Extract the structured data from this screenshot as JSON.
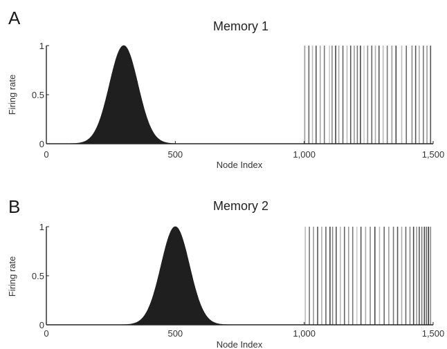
{
  "chart_data": [
    {
      "panel": "A",
      "type": "area",
      "title": "Memory 1",
      "xlabel": "Node Index",
      "ylabel": "Firing rate",
      "xlim": [
        0,
        1500
      ],
      "ylim": [
        0,
        1
      ],
      "xticks": [
        "0",
        "500",
        "1,000",
        "1,500"
      ],
      "yticks": [
        "0",
        "0.5",
        "1"
      ],
      "grid": false,
      "bump": {
        "center": 300,
        "sigma": 55,
        "peak": 1,
        "color": "#1f1f1f"
      },
      "spikes": [
        {
          "x": 1002,
          "shade": "#999999"
        },
        {
          "x": 1018,
          "shade": "#666666"
        },
        {
          "x": 1032,
          "shade": "#bbbbbb"
        },
        {
          "x": 1046,
          "shade": "#555555"
        },
        {
          "x": 1062,
          "shade": "#aaaaaa"
        },
        {
          "x": 1078,
          "shade": "#777777"
        },
        {
          "x": 1098,
          "shade": "#cccccc"
        },
        {
          "x": 1108,
          "shade": "#888888"
        },
        {
          "x": 1122,
          "shade": "#444444"
        },
        {
          "x": 1134,
          "shade": "#aaaaaa"
        },
        {
          "x": 1150,
          "shade": "#666666"
        },
        {
          "x": 1166,
          "shade": "#bbbbbb"
        },
        {
          "x": 1180,
          "shade": "#555555"
        },
        {
          "x": 1194,
          "shade": "#999999"
        },
        {
          "x": 1206,
          "shade": "#777777"
        },
        {
          "x": 1218,
          "shade": "#444444"
        },
        {
          "x": 1232,
          "shade": "#cccccc"
        },
        {
          "x": 1246,
          "shade": "#888888"
        },
        {
          "x": 1262,
          "shade": "#666666"
        },
        {
          "x": 1276,
          "shade": "#aaaaaa"
        },
        {
          "x": 1290,
          "shade": "#555555"
        },
        {
          "x": 1306,
          "shade": "#bbbbbb"
        },
        {
          "x": 1322,
          "shade": "#777777"
        },
        {
          "x": 1340,
          "shade": "#999999"
        },
        {
          "x": 1356,
          "shade": "#444444"
        },
        {
          "x": 1378,
          "shade": "#bbbbbb"
        },
        {
          "x": 1396,
          "shade": "#666666"
        },
        {
          "x": 1418,
          "shade": "#888888"
        },
        {
          "x": 1432,
          "shade": "#555555"
        },
        {
          "x": 1446,
          "shade": "#aaaaaa"
        },
        {
          "x": 1462,
          "shade": "#777777"
        },
        {
          "x": 1476,
          "shade": "#999999"
        },
        {
          "x": 1490,
          "shade": "#555555"
        }
      ]
    },
    {
      "panel": "B",
      "type": "area",
      "title": "Memory 2",
      "xlabel": "Node Index",
      "ylabel": "Firing rate",
      "xlim": [
        0,
        1500
      ],
      "ylim": [
        0,
        1
      ],
      "xticks": [
        "0",
        "500",
        "1,000",
        "1,500"
      ],
      "yticks": [
        "0",
        "0.5",
        "1"
      ],
      "grid": false,
      "bump": {
        "center": 500,
        "sigma": 55,
        "peak": 1,
        "color": "#1f1f1f"
      },
      "spikes": [
        {
          "x": 1004,
          "shade": "#bbbbbb"
        },
        {
          "x": 1020,
          "shade": "#777777"
        },
        {
          "x": 1036,
          "shade": "#999999"
        },
        {
          "x": 1052,
          "shade": "#555555"
        },
        {
          "x": 1068,
          "shade": "#aaaaaa"
        },
        {
          "x": 1084,
          "shade": "#666666"
        },
        {
          "x": 1100,
          "shade": "#444444"
        },
        {
          "x": 1110,
          "shade": "#888888"
        },
        {
          "x": 1124,
          "shade": "#555555"
        },
        {
          "x": 1140,
          "shade": "#bbbbbb"
        },
        {
          "x": 1156,
          "shade": "#666666"
        },
        {
          "x": 1172,
          "shade": "#999999"
        },
        {
          "x": 1188,
          "shade": "#777777"
        },
        {
          "x": 1204,
          "shade": "#cccccc"
        },
        {
          "x": 1220,
          "shade": "#555555"
        },
        {
          "x": 1238,
          "shade": "#aaaaaa"
        },
        {
          "x": 1256,
          "shade": "#888888"
        },
        {
          "x": 1274,
          "shade": "#444444"
        },
        {
          "x": 1292,
          "shade": "#bbbbbb"
        },
        {
          "x": 1310,
          "shade": "#666666"
        },
        {
          "x": 1328,
          "shade": "#999999"
        },
        {
          "x": 1346,
          "shade": "#777777"
        },
        {
          "x": 1362,
          "shade": "#555555"
        },
        {
          "x": 1378,
          "shade": "#aaaaaa"
        },
        {
          "x": 1394,
          "shade": "#666666"
        },
        {
          "x": 1410,
          "shade": "#888888"
        },
        {
          "x": 1424,
          "shade": "#444444"
        },
        {
          "x": 1436,
          "shade": "#999999"
        },
        {
          "x": 1446,
          "shade": "#555555"
        },
        {
          "x": 1456,
          "shade": "#777777"
        },
        {
          "x": 1466,
          "shade": "#444444"
        },
        {
          "x": 1474,
          "shade": "#666666"
        },
        {
          "x": 1482,
          "shade": "#333333"
        },
        {
          "x": 1490,
          "shade": "#888888"
        }
      ]
    }
  ]
}
